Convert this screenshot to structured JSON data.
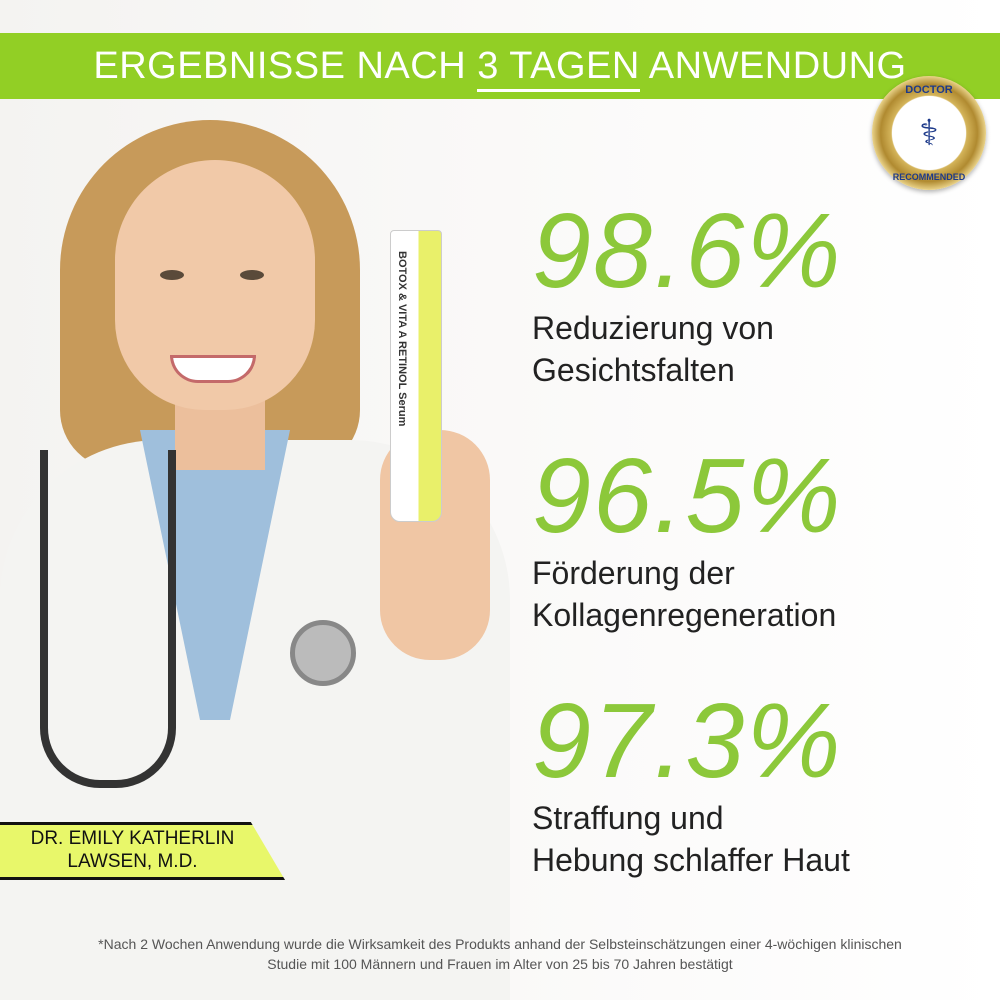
{
  "banner": {
    "title_pre": "ERGEBNISSE NACH ",
    "title_underlined": "3 TAGEN",
    "title_post": " ANWENDUNG",
    "color": "#92cf25"
  },
  "badge": {
    "top": "DOCTOR",
    "bottom": "RECOMMENDED",
    "icon": "caduceus-icon"
  },
  "product": {
    "label": "BOTOX & VITA A RETINOL Serum"
  },
  "stats": [
    {
      "value": "98.6%",
      "line1": "Reduzierung von",
      "line2": "Gesichtsfalten"
    },
    {
      "value": "96.5%",
      "line1": "Förderung der",
      "line2": "Kollagenregeneration"
    },
    {
      "value": "97.3%",
      "line1": "Straffung und",
      "line2": "Hebung schlaffer Haut"
    }
  ],
  "accent_color": "#8cc83a",
  "doctor": {
    "line1": "DR. EMILY KATHERLIN",
    "line2": "LAWSEN, M.D."
  },
  "footnote": {
    "line1": "*Nach 2 Wochen Anwendung wurde die Wirksamkeit des Produkts anhand der Selbsteinschätzungen einer 4-wöchigen klinischen",
    "line2": "Studie mit 100 Männern und Frauen im Alter von 25 bis 70 Jahren bestätigt"
  }
}
